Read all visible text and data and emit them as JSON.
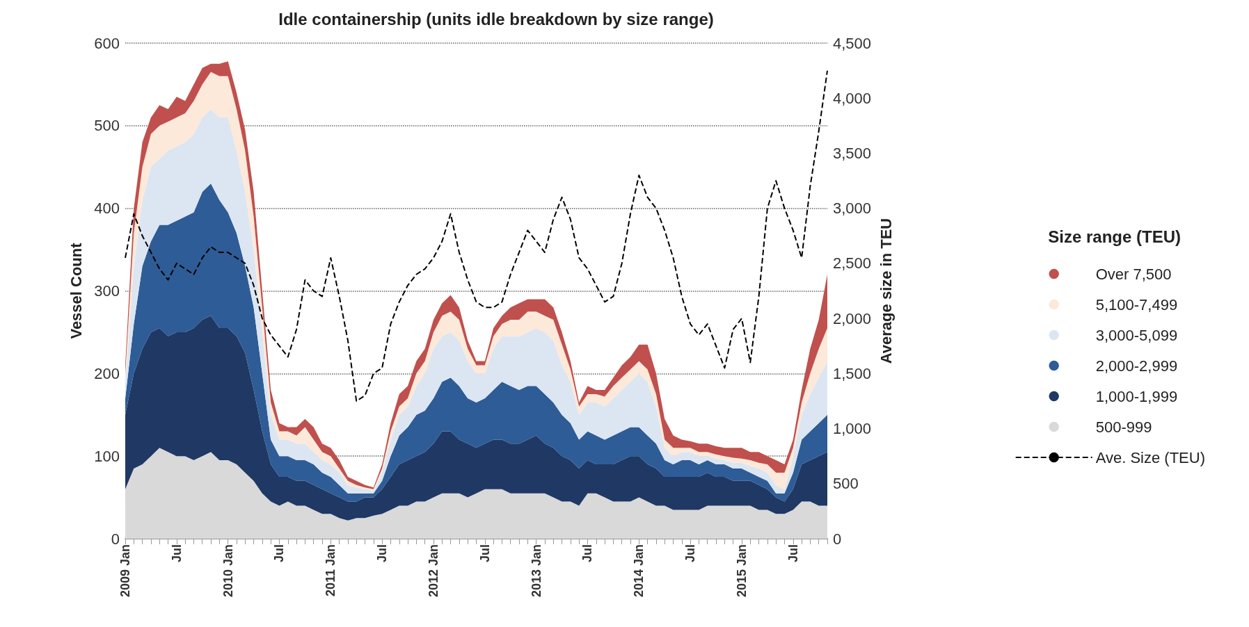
{
  "chart_data": {
    "type": "area",
    "title": "Idle containership (units idle breakdown by size range)",
    "ylabel": "Vessel Count",
    "y2label": "Average size in TEU",
    "legend_title": "Size range (TEU)",
    "stacked": true,
    "grid": "y",
    "legend": "right",
    "marker": "none",
    "categories": [
      "2009 Jan",
      null,
      null,
      null,
      null,
      null,
      "Jul",
      null,
      null,
      null,
      null,
      null,
      "2010 Jan",
      null,
      null,
      null,
      null,
      null,
      "Jul",
      null,
      null,
      null,
      null,
      null,
      "2011 Jan",
      null,
      null,
      null,
      null,
      null,
      "Jul",
      null,
      null,
      null,
      null,
      null,
      "2012 Jan",
      null,
      null,
      null,
      null,
      null,
      "Jul",
      null,
      null,
      null,
      null,
      null,
      "2013 Jan",
      null,
      null,
      null,
      null,
      null,
      "Jul",
      null,
      null,
      null,
      null,
      null,
      "2014 Jan",
      null,
      null,
      null,
      null,
      null,
      "Jul",
      null,
      null,
      null,
      null,
      null,
      "2015 Jan",
      null,
      null,
      null,
      null,
      null,
      "Jul",
      null,
      null,
      null,
      null
    ],
    "ylim": [
      0,
      600
    ],
    "yticks": [
      0,
      100,
      200,
      300,
      400,
      500,
      600
    ],
    "y2lim": [
      0,
      4500
    ],
    "y2ticks": [
      0,
      500,
      {
        "value": 1000,
        "label": "1,000"
      },
      {
        "value": 1500,
        "label": "1,500"
      },
      {
        "value": 2000,
        "label": "2,000"
      },
      {
        "value": 2500,
        "label": "2,500"
      },
      {
        "value": 3000,
        "label": "3,000"
      },
      {
        "value": 3500,
        "label": "3,500"
      },
      {
        "value": 4000,
        "label": "4,000"
      },
      {
        "value": 4500,
        "label": "4,500"
      }
    ],
    "series": [
      {
        "name": "500-999",
        "color": "#d9d9d9",
        "values": [
          60,
          85,
          90,
          100,
          110,
          105,
          100,
          100,
          95,
          100,
          105,
          95,
          95,
          90,
          80,
          70,
          55,
          45,
          40,
          45,
          40,
          40,
          35,
          30,
          30,
          25,
          22,
          25,
          25,
          28,
          30,
          35,
          40,
          40,
          45,
          45,
          50,
          55,
          55,
          55,
          50,
          55,
          60,
          60,
          60,
          55,
          55,
          55,
          55,
          55,
          50,
          45,
          45,
          40,
          55,
          55,
          50,
          45,
          45,
          45,
          50,
          45,
          40,
          40,
          35,
          35,
          35,
          35,
          40,
          40,
          40,
          40,
          40,
          40,
          35,
          35,
          30,
          30,
          35,
          45,
          45,
          40,
          40
        ]
      },
      {
        "name": "1,000-1,999",
        "color": "#1f3864",
        "values": [
          90,
          115,
          140,
          150,
          145,
          140,
          150,
          150,
          160,
          165,
          165,
          160,
          160,
          155,
          145,
          110,
          75,
          45,
          35,
          30,
          30,
          30,
          30,
          30,
          25,
          25,
          23,
          20,
          25,
          22,
          30,
          40,
          50,
          55,
          55,
          60,
          65,
          75,
          75,
          65,
          65,
          55,
          55,
          60,
          60,
          60,
          60,
          65,
          70,
          60,
          60,
          55,
          50,
          45,
          40,
          35,
          40,
          45,
          50,
          55,
          50,
          45,
          45,
          35,
          40,
          40,
          40,
          40,
          40,
          35,
          35,
          30,
          30,
          30,
          30,
          25,
          20,
          15,
          25,
          45,
          50,
          60,
          65
        ]
      },
      {
        "name": "2,000-2,999",
        "color": "#2e5c96",
        "values": [
          20,
          60,
          100,
          110,
          125,
          135,
          135,
          140,
          140,
          155,
          160,
          155,
          140,
          125,
          105,
          100,
          70,
          30,
          25,
          25,
          25,
          25,
          25,
          20,
          20,
          15,
          10,
          10,
          5,
          5,
          10,
          25,
          35,
          40,
          50,
          50,
          55,
          60,
          65,
          65,
          55,
          55,
          55,
          60,
          70,
          70,
          65,
          65,
          60,
          60,
          55,
          50,
          45,
          35,
          35,
          35,
          30,
          35,
          35,
          35,
          35,
          35,
          30,
          20,
          15,
          20,
          20,
          15,
          15,
          15,
          15,
          15,
          15,
          10,
          10,
          10,
          5,
          10,
          20,
          30,
          35,
          40,
          45
        ]
      },
      {
        "name": "3,000-5,099",
        "color": "#dce6f2",
        "values": [
          20,
          70,
          80,
          90,
          80,
          90,
          90,
          90,
          95,
          90,
          90,
          100,
          115,
          100,
          90,
          70,
          50,
          30,
          20,
          20,
          20,
          20,
          15,
          15,
          15,
          15,
          10,
          7,
          5,
          3,
          10,
          20,
          25,
          25,
          35,
          45,
          60,
          55,
          55,
          55,
          45,
          35,
          30,
          50,
          55,
          60,
          65,
          65,
          70,
          75,
          75,
          60,
          50,
          30,
          35,
          40,
          40,
          45,
          50,
          55,
          65,
          65,
          45,
          15,
          10,
          10,
          10,
          10,
          5,
          7,
          5,
          7,
          7,
          8,
          10,
          10,
          10,
          5,
          20,
          30,
          45,
          55,
          65
        ]
      },
      {
        "name": "5,100-7,499",
        "color": "#fde9d9",
        "values": [
          10,
          40,
          40,
          40,
          40,
          35,
          35,
          35,
          40,
          40,
          45,
          50,
          50,
          50,
          50,
          40,
          30,
          15,
          10,
          10,
          10,
          20,
          15,
          10,
          10,
          5,
          5,
          3,
          2,
          2,
          5,
          10,
          10,
          10,
          15,
          15,
          20,
          25,
          25,
          25,
          15,
          10,
          10,
          15,
          15,
          20,
          20,
          25,
          20,
          20,
          25,
          25,
          15,
          10,
          10,
          10,
          12,
          15,
          15,
          15,
          15,
          15,
          15,
          10,
          10,
          5,
          5,
          5,
          5,
          5,
          5,
          6,
          5,
          7,
          7,
          10,
          15,
          20,
          10,
          15,
          25,
          35,
          40
        ]
      },
      {
        "name": "Over 7,500",
        "color": "#c0504d",
        "values": [
          10,
          30,
          30,
          20,
          25,
          15,
          25,
          15,
          20,
          20,
          10,
          15,
          18,
          20,
          25,
          30,
          20,
          15,
          10,
          5,
          10,
          10,
          15,
          10,
          10,
          10,
          5,
          5,
          3,
          2,
          5,
          10,
          15,
          15,
          15,
          15,
          15,
          15,
          20,
          15,
          10,
          5,
          5,
          10,
          10,
          15,
          20,
          15,
          15,
          20,
          15,
          15,
          10,
          5,
          10,
          5,
          8,
          10,
          15,
          15,
          20,
          30,
          25,
          25,
          15,
          10,
          8,
          10,
          10,
          10,
          10,
          12,
          13,
          10,
          13,
          10,
          15,
          10,
          10,
          15,
          30,
          35,
          65
        ]
      },
      {
        "name": "Ave. Size (TEU)",
        "type": "line",
        "axis": "y2",
        "color": "#000000",
        "line_style": "dashed",
        "values": [
          2550,
          2950,
          2750,
          2600,
          2450,
          2350,
          2500,
          2450,
          2400,
          2550,
          2650,
          2600,
          2600,
          2550,
          2500,
          2300,
          2000,
          1850,
          1750,
          1650,
          1900,
          2350,
          2250,
          2200,
          2550,
          2200,
          1800,
          1250,
          1300,
          1500,
          1550,
          1950,
          2150,
          2300,
          2400,
          2450,
          2550,
          2700,
          2950,
          2600,
          2350,
          2150,
          2100,
          2100,
          2150,
          2400,
          2600,
          2800,
          2700,
          2600,
          2900,
          3100,
          2900,
          2550,
          2450,
          2300,
          2150,
          2200,
          2500,
          2950,
          3300,
          3100,
          3000,
          2800,
          2550,
          2200,
          1950,
          1850,
          1950,
          1750,
          1550,
          1900,
          2000,
          1600,
          2200,
          3000,
          3250,
          3000,
          2800,
          2550,
          3200,
          3700,
          4250
        ]
      }
    ]
  }
}
